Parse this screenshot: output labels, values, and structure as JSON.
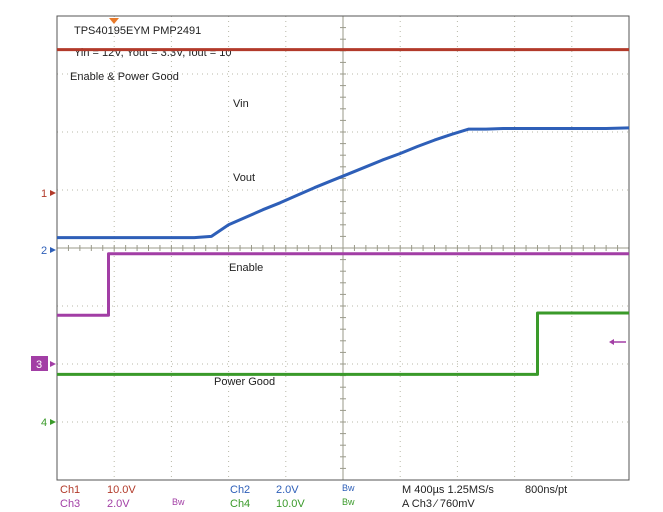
{
  "chart_data": {
    "type": "line",
    "title": "TPS40195EYM PMP2491",
    "subtitle": "Yin = 12V, Yout = 3.3V, Iout = 10",
    "section_label": "Enable & Power Good",
    "grid": true,
    "x_divisions": 10,
    "y_divisions": 8,
    "x": [
      0,
      0.3,
      0.6,
      0.9,
      1.2,
      1.5,
      1.8,
      2.1,
      2.4,
      2.7,
      3.0,
      3.3,
      3.6,
      3.9,
      4.2,
      4.5,
      4.8,
      5.1,
      5.4,
      5.7,
      6.0,
      6.3,
      6.6,
      6.9,
      7.2,
      7.5,
      7.8,
      8.1,
      8.4,
      8.7,
      9.0,
      9.3,
      9.6,
      10.0
    ],
    "x_unit": "div",
    "y_unit": "div (center = 0)",
    "series": [
      {
        "name": "Vin",
        "channel_marker": "1",
        "color": "#b23a2a",
        "values": [
          3.42,
          3.42,
          3.42,
          3.42,
          3.42,
          3.42,
          3.42,
          3.42,
          3.42,
          3.42,
          3.42,
          3.42,
          3.42,
          3.42,
          3.42,
          3.42,
          3.42,
          3.42,
          3.42,
          3.42,
          3.42,
          3.42,
          3.42,
          3.42,
          3.42,
          3.42,
          3.42,
          3.42,
          3.42,
          3.42,
          3.42,
          3.42,
          3.42,
          3.42
        ]
      },
      {
        "name": "Vout",
        "channel_marker": "2",
        "color": "#2e5fb8",
        "values": [
          0.18,
          0.18,
          0.18,
          0.18,
          0.18,
          0.18,
          0.18,
          0.18,
          0.18,
          0.2,
          0.4,
          0.53,
          0.66,
          0.78,
          0.91,
          1.04,
          1.16,
          1.28,
          1.4,
          1.52,
          1.63,
          1.75,
          1.86,
          1.96,
          2.05,
          2.05,
          2.06,
          2.06,
          2.06,
          2.06,
          2.06,
          2.06,
          2.06,
          2.07
        ]
      },
      {
        "name": "Enable",
        "channel_marker": "3",
        "color": "#a23ea5",
        "values": [
          -1.16,
          -1.16,
          -1.16,
          -0.1,
          -0.1,
          -0.1,
          -0.1,
          -0.1,
          -0.1,
          -0.1,
          -0.1,
          -0.1,
          -0.1,
          -0.1,
          -0.1,
          -0.1,
          -0.1,
          -0.1,
          -0.1,
          -0.1,
          -0.1,
          -0.1,
          -0.1,
          -0.1,
          -0.1,
          -0.1,
          -0.1,
          -0.1,
          -0.1,
          -0.1,
          -0.1,
          -0.1,
          -0.1,
          -0.1
        ]
      },
      {
        "name": "Power Good",
        "channel_marker": "4",
        "color": "#3a9a2a",
        "values": [
          -2.18,
          -2.18,
          -2.18,
          -2.18,
          -2.18,
          -2.18,
          -2.18,
          -2.18,
          -2.18,
          -2.18,
          -2.18,
          -2.18,
          -2.18,
          -2.18,
          -2.18,
          -2.18,
          -2.18,
          -2.18,
          -2.18,
          -2.18,
          -2.18,
          -2.18,
          -2.18,
          -2.18,
          -2.18,
          -2.18,
          -2.18,
          -2.18,
          -1.12,
          -1.12,
          -1.12,
          -1.12,
          -1.12,
          -1.12
        ]
      }
    ],
    "trace_labels": [
      "Vin",
      "Vout",
      "Enable",
      "Power Good"
    ],
    "markers": {
      "ch1": "1",
      "ch2": "2",
      "ch3": "3",
      "ch4": "4"
    }
  },
  "settings": {
    "ch1_name": "Ch1",
    "ch1_scale": "10.0V",
    "ch3_name": "Ch3",
    "ch3_scale": "2.0V",
    "ch2_name": "Ch2",
    "ch2_scale": "2.0V",
    "ch4_name": "Ch4",
    "ch4_scale": "10.0V",
    "bw1": "Bw",
    "bw2": "Bw",
    "bw3": "Bw",
    "timebase": "M 400µs 1.25MS/s",
    "resolution": "800ns/pt",
    "trigger": "A  Ch3  ∕  760mV"
  },
  "colors": {
    "background": "#ffffff",
    "grid": "#b8b8a8",
    "frame": "#555555",
    "ch1": "#b23a2a",
    "ch2": "#2e5fb8",
    "ch3": "#a23ea5",
    "ch4": "#3a9a2a",
    "trigger_marker": "#e87a2a"
  }
}
